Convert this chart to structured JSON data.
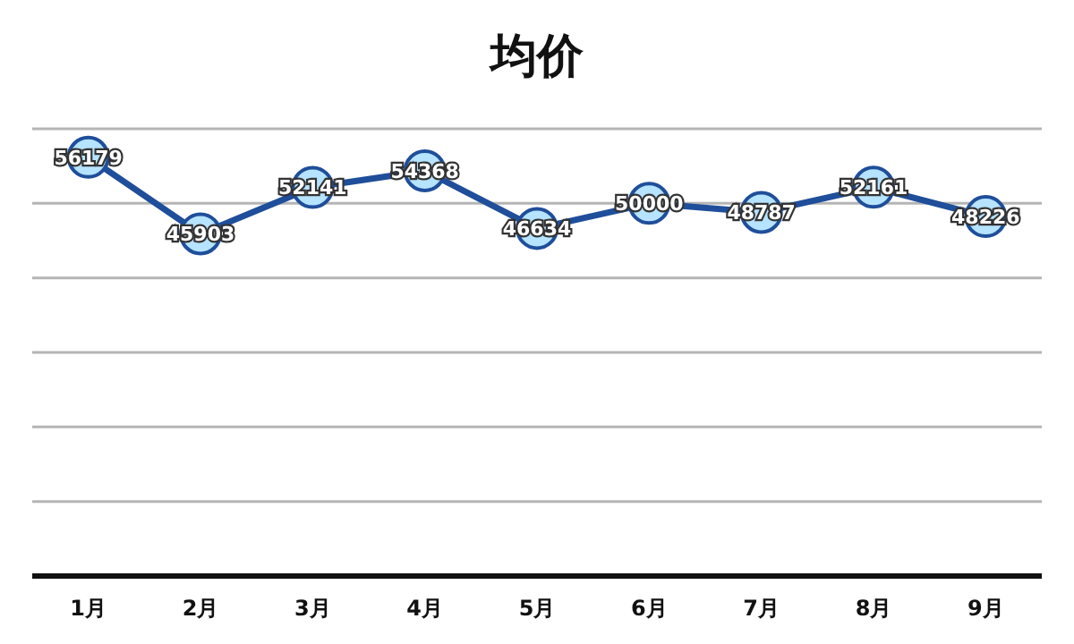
{
  "chart_data": {
    "type": "line",
    "title": "均价",
    "categories": [
      "1月",
      "2月",
      "3月",
      "4月",
      "5月",
      "6月",
      "7月",
      "8月",
      "9月"
    ],
    "values": [
      56179,
      45903,
      52141,
      54368,
      46634,
      50000,
      48787,
      52161,
      48226
    ],
    "color": "#1f4e9a",
    "marker": "circle",
    "data_labels": true,
    "ylim": [
      0,
      60000
    ],
    "yticks": [
      {
        "value": 0,
        "label": null
      },
      {
        "value": 10000,
        "label": null
      },
      {
        "value": 20000,
        "label": null
      },
      {
        "value": 30000,
        "label": null
      },
      {
        "value": 40000,
        "label": null
      },
      {
        "value": 50000,
        "label": null
      },
      {
        "value": 60000,
        "label": null
      }
    ],
    "grid": "y",
    "tick_labels": "x"
  }
}
